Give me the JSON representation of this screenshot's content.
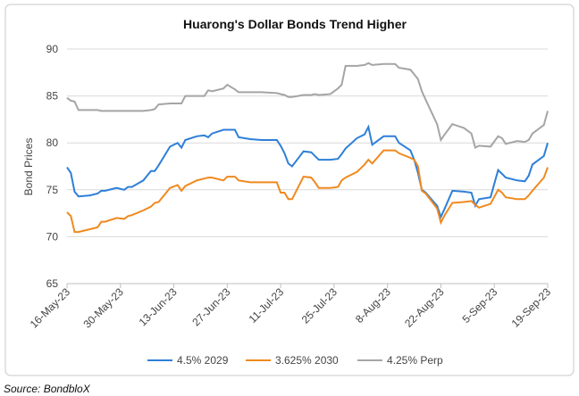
{
  "chart_data": {
    "type": "line",
    "title": "Huarong's Dollar Bonds Trend Higher",
    "ylabel": "Bond Prices",
    "source": "Source: BondbloX",
    "x": [
      "2023-05-16",
      "2023-05-17",
      "2023-05-18",
      "2023-05-19",
      "2023-05-22",
      "2023-05-24",
      "2023-05-25",
      "2023-05-26",
      "2023-05-29",
      "2023-05-31",
      "2023-06-01",
      "2023-06-02",
      "2023-06-05",
      "2023-06-07",
      "2023-06-08",
      "2023-06-09",
      "2023-06-12",
      "2023-06-14",
      "2023-06-15",
      "2023-06-16",
      "2023-06-19",
      "2023-06-21",
      "2023-06-22",
      "2023-06-23",
      "2023-06-26",
      "2023-06-27",
      "2023-06-29",
      "2023-06-30",
      "2023-07-03",
      "2023-07-06",
      "2023-07-10",
      "2023-07-11",
      "2023-07-12",
      "2023-07-13",
      "2023-07-14",
      "2023-07-17",
      "2023-07-19",
      "2023-07-20",
      "2023-07-21",
      "2023-07-24",
      "2023-07-26",
      "2023-07-27",
      "2023-07-28",
      "2023-07-31",
      "2023-08-02",
      "2023-08-03",
      "2023-08-04",
      "2023-08-07",
      "2023-08-10",
      "2023-08-11",
      "2023-08-14",
      "2023-08-15",
      "2023-08-16",
      "2023-08-17",
      "2023-08-18",
      "2023-08-21",
      "2023-08-22",
      "2023-08-23",
      "2023-08-25",
      "2023-08-28",
      "2023-08-30",
      "2023-08-31",
      "2023-09-01",
      "2023-09-04",
      "2023-09-06",
      "2023-09-07",
      "2023-09-08",
      "2023-09-11",
      "2023-09-13",
      "2023-09-14",
      "2023-09-15",
      "2023-09-18",
      "2023-09-19"
    ],
    "series": [
      {
        "name": "4.5% 2029",
        "color": "#2e7fd8",
        "values": [
          77.4,
          76.8,
          74.8,
          74.3,
          74.4,
          74.6,
          74.9,
          74.9,
          75.2,
          75.0,
          75.3,
          75.3,
          76.0,
          77.0,
          77.0,
          77.6,
          79.6,
          80.0,
          79.5,
          80.3,
          80.7,
          80.8,
          80.6,
          81.0,
          81.4,
          81.4,
          81.4,
          80.6,
          80.4,
          80.3,
          80.3,
          79.7,
          78.9,
          77.8,
          77.5,
          79.1,
          79.0,
          78.6,
          78.2,
          78.2,
          78.3,
          78.8,
          79.4,
          80.5,
          80.9,
          81.7,
          79.8,
          80.7,
          80.7,
          80.0,
          79.2,
          78.2,
          76.8,
          75.0,
          74.7,
          73.3,
          72.1,
          73.0,
          74.9,
          74.8,
          74.7,
          73.3,
          74.0,
          74.2,
          77.1,
          76.7,
          76.3,
          76.0,
          75.9,
          76.5,
          77.7,
          78.6,
          80.0
        ]
      },
      {
        "name": "3.625% 2030",
        "color": "#f0891e",
        "values": [
          72.6,
          72.2,
          70.5,
          70.5,
          70.8,
          71.0,
          71.6,
          71.6,
          72.0,
          71.9,
          72.2,
          72.3,
          72.8,
          73.2,
          73.6,
          73.7,
          75.2,
          75.5,
          74.9,
          75.4,
          76.0,
          76.2,
          76.3,
          76.3,
          76.0,
          76.4,
          76.4,
          76.0,
          75.8,
          75.8,
          75.8,
          74.7,
          74.7,
          74.0,
          74.0,
          76.4,
          76.3,
          75.8,
          75.2,
          75.2,
          75.3,
          76.0,
          76.3,
          76.9,
          77.7,
          78.2,
          77.8,
          79.2,
          79.2,
          78.9,
          78.4,
          78.2,
          77.5,
          74.9,
          74.6,
          73.0,
          71.5,
          72.3,
          73.6,
          73.7,
          73.8,
          73.4,
          73.1,
          73.5,
          75.0,
          74.7,
          74.2,
          74.0,
          74.0,
          74.4,
          74.9,
          76.3,
          77.4
        ]
      },
      {
        "name": "4.25% Perp",
        "color": "#a5a5a5",
        "values": [
          84.8,
          84.5,
          84.4,
          83.5,
          83.5,
          83.5,
          83.4,
          83.4,
          83.4,
          83.4,
          83.4,
          83.4,
          83.4,
          83.5,
          83.6,
          84.1,
          84.2,
          84.2,
          84.2,
          85.0,
          85.0,
          85.0,
          85.6,
          85.5,
          85.8,
          86.2,
          85.7,
          85.4,
          85.4,
          85.4,
          85.3,
          85.2,
          85.1,
          84.9,
          84.9,
          85.1,
          85.1,
          85.2,
          85.1,
          85.2,
          85.8,
          86.2,
          88.2,
          88.2,
          88.3,
          88.5,
          88.3,
          88.4,
          88.4,
          88.0,
          87.8,
          87.3,
          86.8,
          85.5,
          84.6,
          82.0,
          80.3,
          80.9,
          82.0,
          81.6,
          81.0,
          79.5,
          79.7,
          79.6,
          80.7,
          80.5,
          79.9,
          80.2,
          80.1,
          80.3,
          81.0,
          81.9,
          83.4
        ]
      }
    ],
    "xlim": [
      "2023-05-16",
      "2023-09-19"
    ],
    "xticks": [
      {
        "value": "2023-05-16",
        "label": "16-May-23"
      },
      {
        "value": "2023-05-30",
        "label": "30-May-23"
      },
      {
        "value": "2023-06-13",
        "label": "13-Jun-23"
      },
      {
        "value": "2023-06-27",
        "label": "27-Jun-23"
      },
      {
        "value": "2023-07-11",
        "label": "11-Jul-23"
      },
      {
        "value": "2023-07-25",
        "label": "25-Jul-23"
      },
      {
        "value": "2023-08-08",
        "label": "8-Aug-23"
      },
      {
        "value": "2023-08-22",
        "label": "22-Aug-23"
      },
      {
        "value": "2023-09-05",
        "label": "5-Sep-23"
      },
      {
        "value": "2023-09-19",
        "label": "19-Sep-23"
      }
    ],
    "ylim": [
      65,
      90
    ],
    "yticks": [
      65,
      70,
      75,
      80,
      85,
      90
    ],
    "grid": true,
    "legend": "bottom"
  }
}
